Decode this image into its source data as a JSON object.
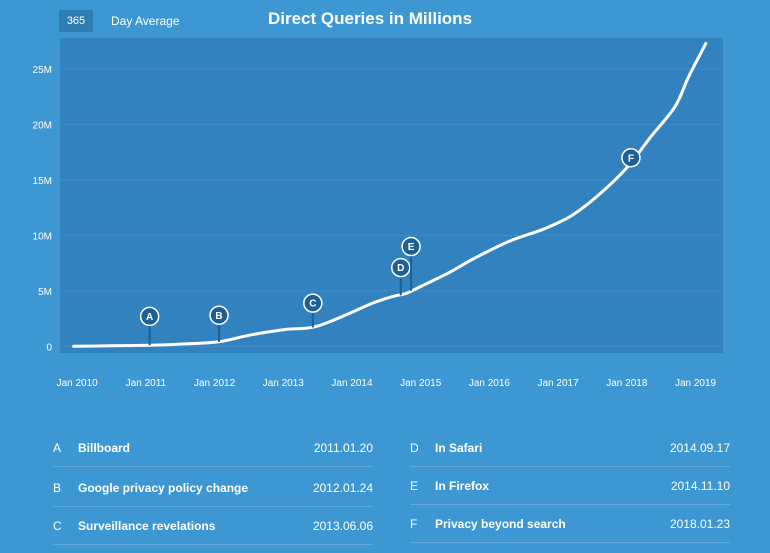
{
  "header": {
    "period_value": "365",
    "period_label": "Day Average"
  },
  "chart_data": {
    "type": "line",
    "title": "Direct Queries in Millions",
    "xlabel": "",
    "ylabel": "",
    "x_tick_labels": [
      "Jan 2010",
      "Jan 2011",
      "Jan 2012",
      "Jan 2013",
      "Jan 2014",
      "Jan 2015",
      "Jan 2016",
      "Jan 2017",
      "Jan 2018",
      "Jan 2019"
    ],
    "x_tick_years": [
      2010,
      2011,
      2012,
      2013,
      2014,
      2015,
      2016,
      2017,
      2018,
      2019
    ],
    "y_tick_labels": [
      "0",
      "5M",
      "10M",
      "15M",
      "20M",
      "25M"
    ],
    "y_tick_values": [
      0,
      5,
      10,
      15,
      20,
      25
    ],
    "xlim": [
      2009.75,
      2019.4
    ],
    "ylim": [
      -0.6,
      27.8
    ],
    "series": [
      {
        "name": "Direct Queries (365 Day Average, millions)",
        "x": [
          2009.95,
          2010.5,
          2011.05,
          2011.5,
          2012.05,
          2012.5,
          2013.0,
          2013.45,
          2013.9,
          2014.3,
          2014.6,
          2014.8,
          2015.0,
          2015.4,
          2015.8,
          2016.3,
          2016.8,
          2017.2,
          2017.6,
          2018.0,
          2018.35,
          2018.7,
          2018.9,
          2019.15
        ],
        "y": [
          0.0,
          0.05,
          0.1,
          0.2,
          0.4,
          1.0,
          1.5,
          1.75,
          2.8,
          3.9,
          4.5,
          4.8,
          5.4,
          6.6,
          8.0,
          9.5,
          10.6,
          11.8,
          13.7,
          16.1,
          18.9,
          21.6,
          24.3,
          27.3
        ]
      }
    ],
    "events": [
      {
        "letter": "A",
        "label": "Billboard",
        "date": "2011.01.20",
        "x": 2011.055,
        "y": 0.1,
        "stem": 2.6
      },
      {
        "letter": "B",
        "label": "Google privacy policy change",
        "date": "2012.01.24",
        "x": 2012.065,
        "y": 0.4,
        "stem": 2.4
      },
      {
        "letter": "C",
        "label": "Surveillance revelations",
        "date": "2013.06.06",
        "x": 2013.43,
        "y": 1.7,
        "stem": 2.2
      },
      {
        "letter": "D",
        "label": "In Safari",
        "date": "2014.09.17",
        "x": 2014.71,
        "y": 4.6,
        "stem": 2.5
      },
      {
        "letter": "E",
        "label": "In Firefox",
        "date": "2014.11.10",
        "x": 2014.86,
        "y": 5.0,
        "stem": 4.0
      },
      {
        "letter": "F",
        "label": "Privacy beyond search",
        "date": "2018.01.23",
        "x": 2018.06,
        "y": 17.0,
        "stem": 0.0
      }
    ]
  }
}
